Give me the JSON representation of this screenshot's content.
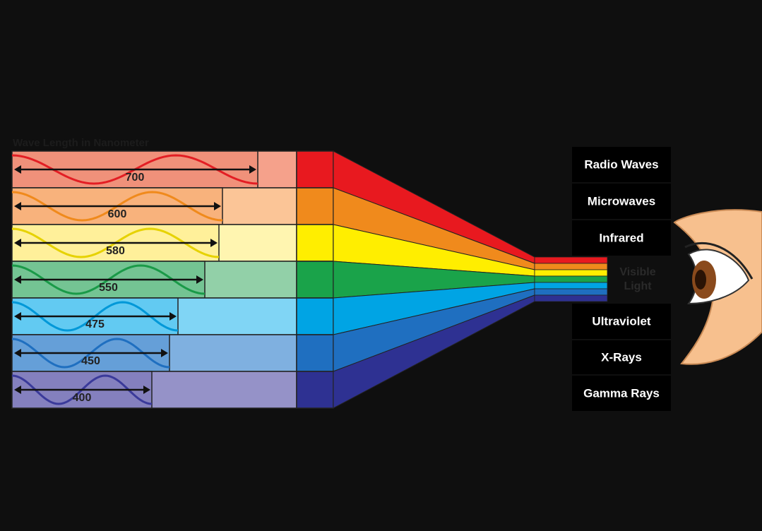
{
  "title": "Wave Length in Nanometer",
  "wavelengths": [
    "700",
    "600",
    "580",
    "550",
    "475",
    "450",
    "400"
  ],
  "spectrum": [
    "Radio Waves",
    "Microwaves",
    "Infrared",
    "Visible Light",
    "Ultraviolet",
    "X-Rays",
    "Gamma Rays"
  ]
}
